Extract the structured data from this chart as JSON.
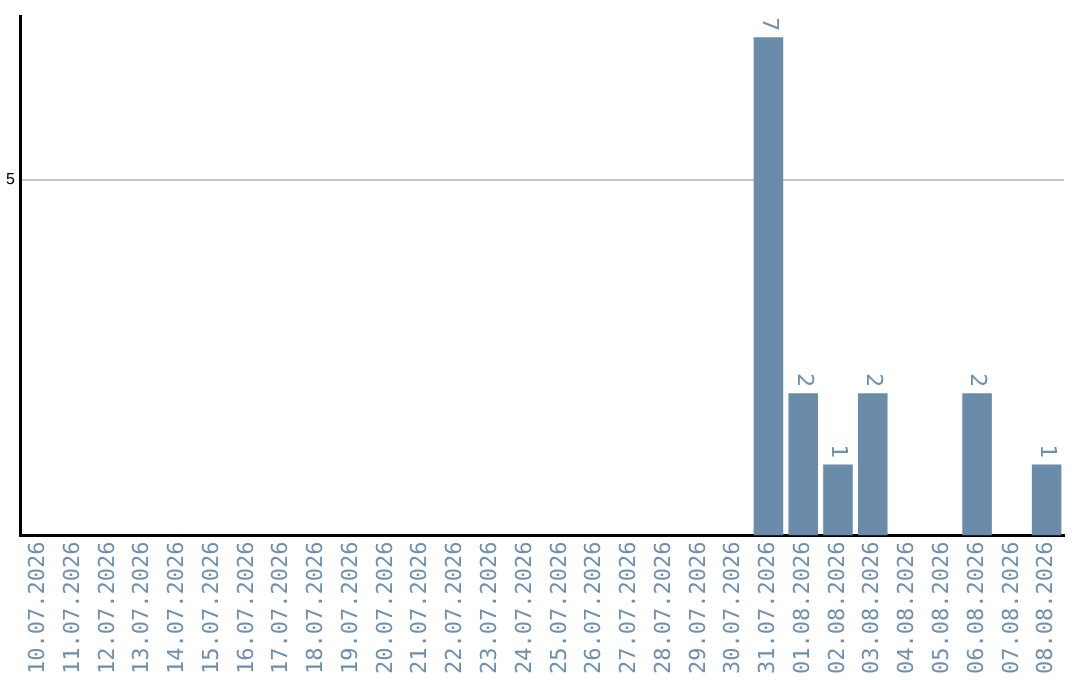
{
  "chart_data": {
    "type": "bar",
    "ylim": [
      0,
      7.3
    ],
    "yticks": [
      5
    ],
    "grid": "y",
    "data_labels": true,
    "categories": [
      "10.07.2026",
      "11.07.2026",
      "12.07.2026",
      "13.07.2026",
      "14.07.2026",
      "15.07.2026",
      "16.07.2026",
      "17.07.2026",
      "18.07.2026",
      "19.07.2026",
      "20.07.2026",
      "21.07.2026",
      "22.07.2026",
      "23.07.2026",
      "24.07.2026",
      "25.07.2026",
      "26.07.2026",
      "27.07.2026",
      "28.07.2026",
      "29.07.2026",
      "30.07.2026",
      "31.07.2026",
      "01.08.2026",
      "02.08.2026",
      "03.08.2026",
      "04.08.2026",
      "05.08.2026",
      "06.08.2026",
      "07.08.2026",
      "08.08.2026"
    ],
    "values": [
      null,
      null,
      null,
      null,
      null,
      null,
      null,
      null,
      null,
      null,
      null,
      null,
      null,
      null,
      null,
      null,
      null,
      null,
      null,
      null,
      null,
      7,
      2,
      1,
      2,
      null,
      null,
      2,
      null,
      1
    ],
    "color": "#6a8caa",
    "legend": false
  }
}
